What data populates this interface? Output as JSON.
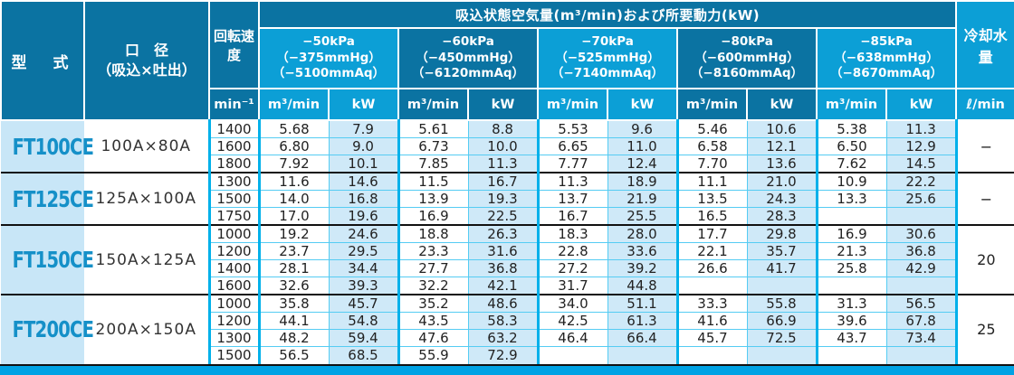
{
  "header": {
    "model_label": "型　式",
    "bore_label_line1": "口　径",
    "bore_label_line2": "（吸込×吐出）",
    "speed_label": "回転速度",
    "speed_unit": "min⁻¹",
    "band_title": "吸込状態空気量(m³/min)および所要動力(kW)",
    "flow_unit": "m³/min",
    "power_unit": "kW",
    "cooling_label": "冷却水量",
    "cooling_unit": "ℓ/min"
  },
  "pressure_columns": [
    {
      "kpa": "−50kPa",
      "mmhg": "（−375mmHg）",
      "mmaq": "（−5100mmAq）",
      "shade": "bright"
    },
    {
      "kpa": "−60kPa",
      "mmhg": "（−450mmHg）",
      "mmaq": "（−6120mmAq）",
      "shade": "dark"
    },
    {
      "kpa": "−70kPa",
      "mmhg": "（−525mmHg）",
      "mmaq": "（−7140mmAq）",
      "shade": "bright"
    },
    {
      "kpa": "−80kPa",
      "mmhg": "（−600mmHg）",
      "mmaq": "（−8160mmAq）",
      "shade": "dark"
    },
    {
      "kpa": "−85kPa",
      "mmhg": "（−638mmHg）",
      "mmaq": "（−8670mmAq）",
      "shade": "bright"
    }
  ],
  "groups": [
    {
      "model": "FT100CE",
      "bore": "100A×80A",
      "cooling": "−",
      "rows": [
        {
          "speed": "1400",
          "values": [
            "5.68",
            "7.9",
            "5.61",
            "8.8",
            "5.53",
            "9.6",
            "5.46",
            "10.6",
            "5.38",
            "11.3"
          ]
        },
        {
          "speed": "1600",
          "values": [
            "6.80",
            "9.0",
            "6.73",
            "10.0",
            "6.65",
            "11.0",
            "6.58",
            "12.1",
            "6.50",
            "12.9"
          ]
        },
        {
          "speed": "1800",
          "values": [
            "7.92",
            "10.1",
            "7.85",
            "11.3",
            "7.77",
            "12.4",
            "7.70",
            "13.6",
            "7.62",
            "14.5"
          ]
        }
      ]
    },
    {
      "model": "FT125CE",
      "bore": "125A×100A",
      "cooling": "−",
      "rows": [
        {
          "speed": "1300",
          "values": [
            "11.6",
            "14.6",
            "11.5",
            "16.7",
            "11.3",
            "18.9",
            "11.1",
            "21.0",
            "10.9",
            "22.2"
          ]
        },
        {
          "speed": "1500",
          "values": [
            "14.0",
            "16.8",
            "13.9",
            "19.3",
            "13.7",
            "21.9",
            "13.5",
            "24.3",
            "13.3",
            "25.6"
          ]
        },
        {
          "speed": "1750",
          "values": [
            "17.0",
            "19.6",
            "16.9",
            "22.5",
            "16.7",
            "25.5",
            "16.5",
            "28.3",
            "",
            ""
          ]
        }
      ]
    },
    {
      "model": "FT150CE",
      "bore": "150A×125A",
      "cooling": "20",
      "rows": [
        {
          "speed": "1000",
          "values": [
            "19.2",
            "24.6",
            "18.8",
            "26.3",
            "18.3",
            "28.0",
            "17.7",
            "29.8",
            "16.9",
            "30.6"
          ]
        },
        {
          "speed": "1200",
          "values": [
            "23.7",
            "29.5",
            "23.3",
            "31.6",
            "22.8",
            "33.6",
            "22.1",
            "35.7",
            "21.3",
            "36.8"
          ]
        },
        {
          "speed": "1400",
          "values": [
            "28.1",
            "34.4",
            "27.7",
            "36.8",
            "27.2",
            "39.2",
            "26.6",
            "41.7",
            "25.8",
            "42.9"
          ]
        },
        {
          "speed": "1600",
          "values": [
            "32.6",
            "39.3",
            "32.2",
            "42.1",
            "31.7",
            "44.8",
            "",
            "",
            "",
            ""
          ]
        }
      ]
    },
    {
      "model": "FT200CE",
      "bore": "200A×150A",
      "cooling": "25",
      "rows": [
        {
          "speed": "1000",
          "values": [
            "35.8",
            "45.7",
            "35.2",
            "48.6",
            "34.0",
            "51.1",
            "33.3",
            "55.8",
            "31.3",
            "56.5"
          ]
        },
        {
          "speed": "1200",
          "values": [
            "44.1",
            "54.8",
            "43.5",
            "58.3",
            "42.5",
            "61.3",
            "41.6",
            "66.9",
            "39.6",
            "67.8"
          ]
        },
        {
          "speed": "1300",
          "values": [
            "48.2",
            "59.4",
            "47.6",
            "63.2",
            "46.4",
            "66.4",
            "45.7",
            "72.5",
            "43.7",
            "73.4"
          ]
        },
        {
          "speed": "1500",
          "values": [
            "56.5",
            "68.5",
            "55.9",
            "72.9",
            "",
            "",
            "",
            "",
            "",
            ""
          ]
        }
      ]
    }
  ],
  "colors": {
    "header_dark": "#0b73a2",
    "header_bright": "#0c9fd6",
    "grid_cyan": "#00b0ea",
    "row_tint": "#cfe9f8",
    "model_bg": "#c8e6f7",
    "model_text": "#1590c8",
    "bottom_bar": "#00a2e4"
  }
}
